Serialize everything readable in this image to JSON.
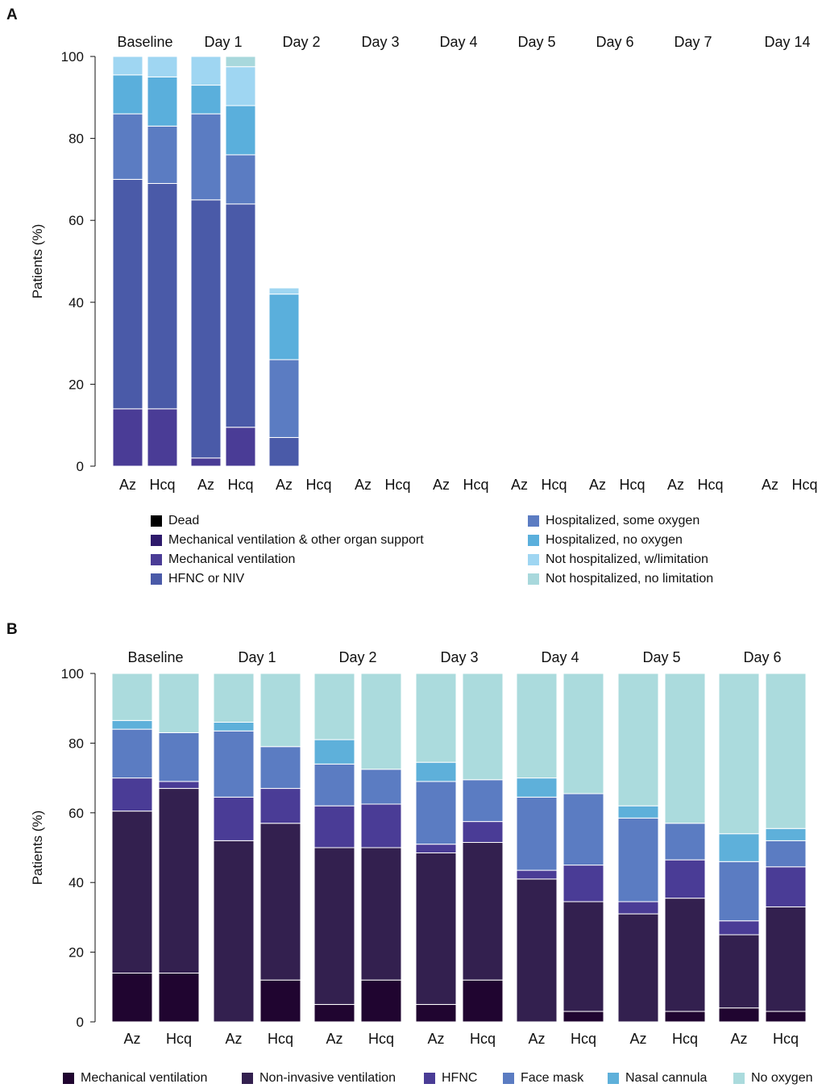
{
  "panels": [
    {
      "letter": "A",
      "ylabel": "Patients (%)",
      "yticks": [
        0,
        20,
        40,
        60,
        80,
        100
      ],
      "bar_labels": [
        "Az",
        "Hcq"
      ],
      "legend": [
        "Dead",
        "Mechanical ventilation & other organ support",
        "Mechanical ventilation",
        "HFNC or NIV",
        "Hospitalized, some oxygen",
        "Hospitalized, no oxygen",
        "Not hospitalized, w/limitation",
        "Not hospitalized, no limitation"
      ],
      "colors": [
        "#000000",
        "#2e1a6b",
        "#4a3c96",
        "#4a5aa8",
        "#5b7cc2",
        "#5aafdc",
        "#9fd6f2",
        "#a8d8dc"
      ]
    },
    {
      "letter": "B",
      "ylabel": "Patients (%)",
      "yticks": [
        0,
        20,
        40,
        60,
        80,
        100
      ],
      "bar_labels": [
        "Az",
        "Hcq"
      ],
      "legend": [
        "Mechanical ventilation",
        "Non-invasive ventilation",
        "HFNC",
        "Face mask",
        "Nasal cannula",
        "No oxygen"
      ],
      "colors": [
        "#200530",
        "#33204f",
        "#4a3c96",
        "#5b7cc2",
        "#5eb0da",
        "#abdbdd"
      ]
    }
  ],
  "chart_data": [
    {
      "type": "stacked_bar",
      "title": "A",
      "ylabel": "Patients (%)",
      "ylim": [
        0,
        100
      ],
      "groups": [
        "Baseline",
        "Day 1",
        "Day 2",
        "Day 3",
        "Day 4",
        "Day 5",
        "Day 6",
        "Day 7",
        "Day 14"
      ],
      "bars": [
        "Az",
        "Hcq"
      ],
      "categories_bottom_to_top": [
        "Not hospitalized, no limitation",
        "Not hospitalized, w/limitation",
        "Hospitalized, no oxygen",
        "Hospitalized, some oxygen",
        "HFNC or NIV",
        "Mechanical ventilation",
        "Mechanical ventilation & other organ support",
        "Dead"
      ],
      "values": [
        [
          [
            0,
            0,
            14,
            56,
            16,
            9.5,
            4.5,
            0
          ],
          [
            0,
            0,
            14,
            55,
            14,
            12,
            5,
            0
          ]
        ],
        [
          [
            0,
            0,
            2,
            63,
            21,
            7,
            7,
            0
          ],
          [
            0,
            0,
            9.5,
            54.5,
            12,
            12,
            9.5,
            2.5
          ]
        ],
        [
          [
            0,
            0,
            0,
            7,
            19,
            16,
            1.5,
            0
          ],
          [
            0,
            0,
            0,
            0,
            0,
            0,
            0,
            0
          ]
        ],
        [
          [
            0,
            0,
            0,
            0,
            0,
            0,
            0,
            0
          ],
          [
            0,
            0,
            0,
            0,
            0,
            0,
            0,
            0
          ]
        ],
        [
          [
            0,
            0,
            0,
            0,
            0,
            0,
            0,
            0
          ],
          [
            0,
            0,
            0,
            0,
            0,
            0,
            0,
            0
          ]
        ],
        [
          [
            0,
            0,
            0,
            0,
            0,
            0,
            0,
            0
          ],
          [
            0,
            0,
            0,
            0,
            0,
            0,
            0,
            0
          ]
        ],
        [
          [
            0,
            0,
            0,
            0,
            0,
            0,
            0,
            0
          ],
          [
            0,
            0,
            0,
            0,
            0,
            0,
            0,
            0
          ]
        ],
        [
          [
            0,
            0,
            0,
            0,
            0,
            0,
            0,
            0
          ],
          [
            0,
            0,
            0,
            0,
            0,
            0,
            0,
            0
          ]
        ],
        [
          [
            0,
            0,
            0,
            0,
            0,
            0,
            0,
            0
          ],
          [
            0,
            0,
            0,
            0,
            0,
            0,
            0,
            0
          ]
        ]
      ]
    },
    {
      "type": "stacked_bar",
      "title": "B",
      "ylabel": "Patients (%)",
      "ylim": [
        0,
        100
      ],
      "groups": [
        "Baseline",
        "Day 1",
        "Day 2",
        "Day 3",
        "Day 4",
        "Day 5",
        "Day 6"
      ],
      "bars": [
        "Az",
        "Hcq"
      ],
      "categories_bottom_to_top": [
        "No oxygen",
        "Nasal cannula",
        "Face mask",
        "HFNC",
        "Non-invasive ventilation",
        "Mechanical ventilation"
      ],
      "values": [
        [
          [
            14,
            46.5,
            9.5,
            14,
            2.5,
            13.5
          ],
          [
            14,
            53,
            2,
            14,
            0,
            17
          ]
        ],
        [
          [
            0,
            52,
            12.5,
            19,
            2.5,
            14
          ],
          [
            12,
            45,
            10,
            12,
            0,
            21
          ]
        ],
        [
          [
            5,
            45,
            12,
            12,
            7,
            19
          ],
          [
            12,
            38,
            12.5,
            10,
            0,
            27.5
          ]
        ],
        [
          [
            5,
            43.5,
            2.5,
            18,
            5.5,
            25.5
          ],
          [
            12,
            39.5,
            6,
            12,
            0,
            30.5
          ]
        ],
        [
          [
            0,
            41,
            2.5,
            21,
            5.5,
            30
          ],
          [
            3,
            31.5,
            10.5,
            20.5,
            0,
            34.5
          ]
        ],
        [
          [
            0,
            31,
            3.5,
            24,
            3.5,
            38
          ],
          [
            3,
            32.5,
            11,
            10.5,
            0,
            43
          ]
        ],
        [
          [
            4,
            21,
            4,
            17,
            8,
            46
          ],
          [
            3,
            30,
            11.5,
            7.5,
            3.5,
            44.5
          ]
        ]
      ]
    }
  ]
}
